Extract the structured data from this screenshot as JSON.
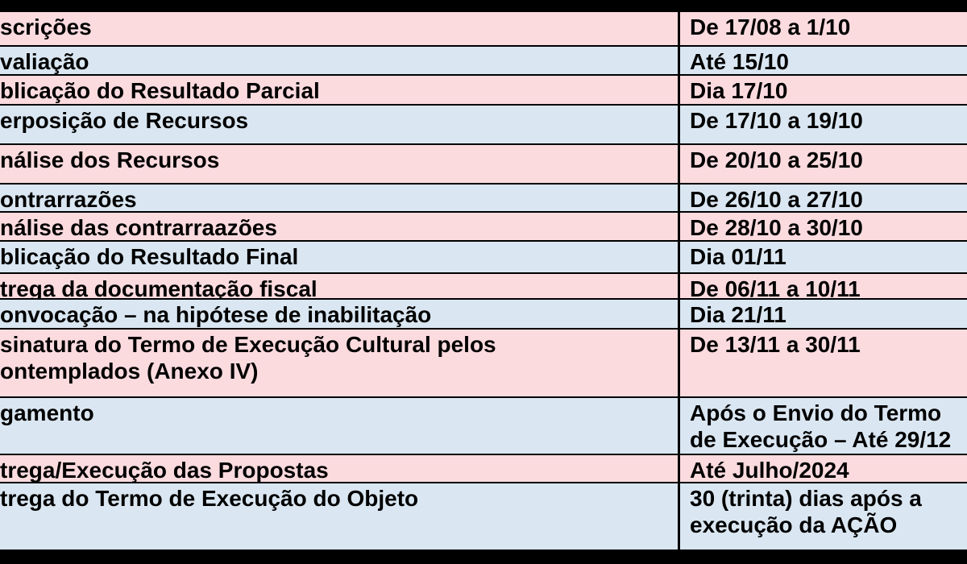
{
  "colors": {
    "background": "#000000",
    "border": "#000000",
    "text": "#000000",
    "row_pink": "#FCDBDF",
    "row_blue": "#DAE7F2"
  },
  "schedule_table": {
    "rows": [
      {
        "activity": "scrições",
        "date": "De 17/08 a 1/10",
        "tone": "pink"
      },
      {
        "activity": "valiação",
        "date": "Até 15/10",
        "tone": "blue"
      },
      {
        "activity": "blicação do Resultado Parcial",
        "date": "Dia 17/10",
        "tone": "pink"
      },
      {
        "activity": "erposição de Recursos",
        "date": "De 17/10 a 19/10",
        "tone": "blue"
      },
      {
        "activity": "nálise dos Recursos",
        "date": "De 20/10 a 25/10",
        "tone": "pink"
      },
      {
        "activity": "ontrarrazões",
        "date": "De 26/10 a 27/10",
        "tone": "blue"
      },
      {
        "activity": "nálise das contrarraazões",
        "date": "De 28/10 a 30/10",
        "tone": "pink"
      },
      {
        "activity": "blicação do Resultado Final",
        "date": "Dia 01/11",
        "tone": "blue"
      },
      {
        "activity": "trega da documentação fiscal",
        "date": "De 06/11 a 10/11",
        "tone": "pink"
      },
      {
        "activity": "onvocação – na hipótese de inabilitação",
        "date": "Dia 21/11",
        "tone": "blue"
      },
      {
        "activity": "sinatura do Termo de Execução Cultural pelos\nontemplados (Anexo IV)",
        "date": "De 13/11 a 30/11",
        "tone": "pink"
      },
      {
        "activity": "gamento",
        "date": "Após o Envio do Termo\nde Execução – Até 29/12",
        "tone": "blue"
      },
      {
        "activity": "trega/Execução das Propostas",
        "date": "Até Julho/2024",
        "tone": "pink"
      },
      {
        "activity": "trega do Termo de Execução do Objeto",
        "date": "30 (trinta) dias após a\nexecução da AÇÃO",
        "tone": "blue"
      }
    ]
  }
}
